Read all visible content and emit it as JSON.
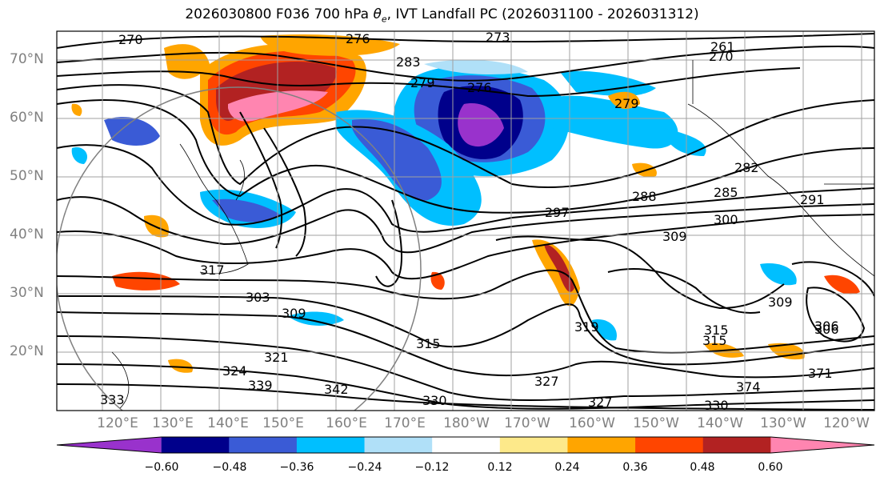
{
  "title": {
    "prefix": "2026030800 F036 700 hPa ",
    "theta": "θ",
    "theta_sub": "e",
    "suffix": ", IVT Landfall PC (2026031100 - 2026031312)"
  },
  "lat_labels": [
    "70°N",
    "60°N",
    "50°N",
    "40°N",
    "30°N",
    "20°N"
  ],
  "lon_labels": [
    "120°E",
    "130°E",
    "140°E",
    "150°E",
    "160°E",
    "170°E",
    "180°W",
    "170°W",
    "160°W",
    "150°W",
    "140°W",
    "130°W",
    "120°W"
  ],
  "colorbar": {
    "ticks": [
      "−0.60",
      "−0.48",
      "−0.36",
      "−0.24",
      "−0.12",
      "0.12",
      "0.24",
      "0.36",
      "0.48",
      "0.60"
    ],
    "colors": [
      "#9932cc",
      "#00008b",
      "#3a5bd6",
      "#00bfff",
      "#b0e0f8",
      "#ffffff",
      "#fde98a",
      "#ffa500",
      "#ff4500",
      "#b22222",
      "#ff85b0"
    ]
  },
  "contour_labels": [
    "270",
    "276",
    "273",
    "261",
    "270",
    "279",
    "276",
    "283",
    "279",
    "282",
    "288",
    "285",
    "297",
    "300",
    "291",
    "309",
    "306",
    "303",
    "309",
    "315",
    "315",
    "315",
    "306",
    "309",
    "327",
    "324",
    "321",
    "330",
    "342",
    "339",
    "333",
    "330",
    "327",
    "374",
    "371",
    "317",
    "319"
  ]
}
